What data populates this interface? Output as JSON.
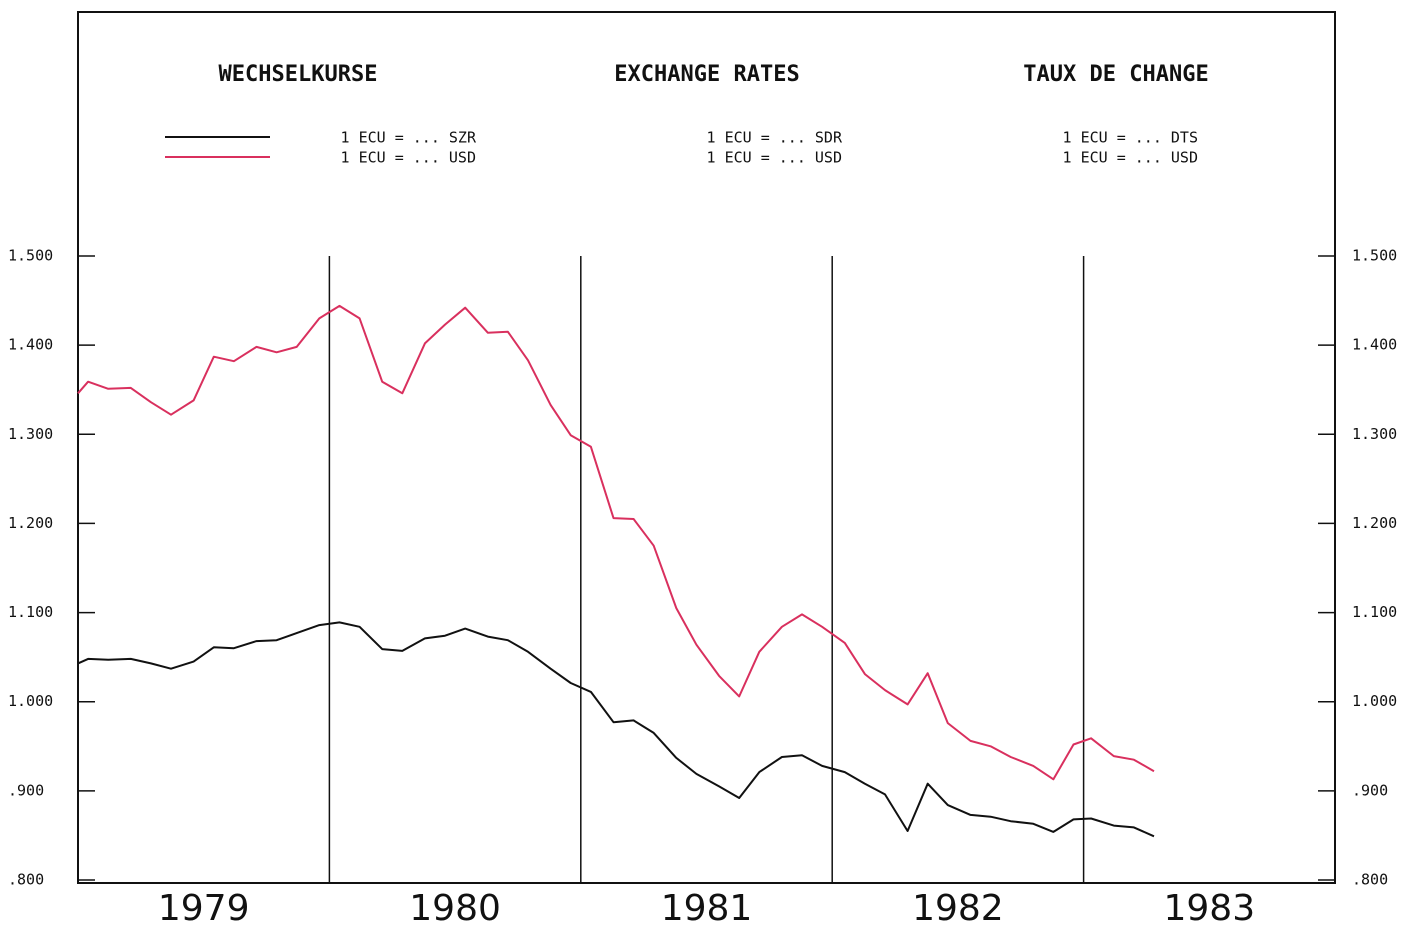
{
  "chart_data": {
    "type": "line",
    "titles": [
      "WECHSELKURSE",
      "EXCHANGE RATES",
      "TAUX DE CHANGE"
    ],
    "legend_columns": [
      [
        "1 ECU = ... SZR",
        "1 ECU = ... USD"
      ],
      [
        "1 ECU = ... SDR",
        "1 ECU = ... USD"
      ],
      [
        "1 ECU = ... DTS",
        "1 ECU = ... USD"
      ]
    ],
    "x": [
      1979.0,
      1979.04,
      1979.12,
      1979.21,
      1979.29,
      1979.37,
      1979.46,
      1979.54,
      1979.62,
      1979.71,
      1979.79,
      1979.87,
      1979.96,
      1980.04,
      1980.12,
      1980.21,
      1980.29,
      1980.38,
      1980.46,
      1980.54,
      1980.63,
      1980.71,
      1980.79,
      1980.88,
      1980.96,
      1981.04,
      1981.13,
      1981.21,
      1981.29,
      1981.38,
      1981.46,
      1981.55,
      1981.63,
      1981.71,
      1981.8,
      1981.88,
      1981.96,
      1982.05,
      1982.13,
      1982.21,
      1982.3,
      1982.38,
      1982.46,
      1982.55,
      1982.63,
      1982.71,
      1982.8,
      1982.88,
      1982.96,
      1983.03,
      1983.12,
      1983.2,
      1983.28
    ],
    "series": [
      {
        "name": "1 ECU = ... SZR",
        "color": "#111111",
        "values": [
          1.043,
          1.048,
          1.047,
          1.048,
          1.043,
          1.037,
          1.045,
          1.061,
          1.06,
          1.068,
          1.069,
          1.077,
          1.086,
          1.089,
          1.084,
          1.059,
          1.057,
          1.071,
          1.074,
          1.082,
          1.073,
          1.069,
          1.056,
          1.037,
          1.021,
          1.011,
          0.977,
          0.979,
          0.965,
          0.937,
          0.919,
          0.905,
          0.892,
          0.921,
          0.938,
          0.94,
          0.928,
          0.921,
          0.908,
          0.896,
          0.855,
          0.908,
          0.884,
          0.873,
          0.871,
          0.866,
          0.863,
          0.854,
          0.868,
          0.869,
          0.861,
          0.859,
          0.849
        ]
      },
      {
        "name": "1 ECU = ... USD",
        "color": "#d9305e",
        "values": [
          1.346,
          1.359,
          1.351,
          1.352,
          1.336,
          1.322,
          1.338,
          1.387,
          1.382,
          1.398,
          1.392,
          1.398,
          1.43,
          1.444,
          1.43,
          1.359,
          1.346,
          1.402,
          1.423,
          1.442,
          1.414,
          1.415,
          1.383,
          1.333,
          1.299,
          1.286,
          1.206,
          1.205,
          1.175,
          1.105,
          1.064,
          1.029,
          1.006,
          1.056,
          1.084,
          1.098,
          1.084,
          1.066,
          1.031,
          1.013,
          0.997,
          1.032,
          0.976,
          0.956,
          0.95,
          0.938,
          0.928,
          0.913,
          0.952,
          0.959,
          0.939,
          0.935,
          0.922
        ]
      }
    ],
    "xlim": [
      1979,
      1984
    ],
    "xticks": [
      {
        "value": 1979.5,
        "label": "1979"
      },
      {
        "value": 1980.5,
        "label": "1980"
      },
      {
        "value": 1981.5,
        "label": "1981"
      },
      {
        "value": 1982.5,
        "label": "1982"
      },
      {
        "value": 1983.5,
        "label": "1983"
      }
    ],
    "year_lines": [
      1980,
      1981,
      1982,
      1983
    ],
    "ylim": [
      0.8,
      1.5
    ],
    "yticks": [
      {
        "value": 1.5,
        "label": "1.500"
      },
      {
        "value": 1.4,
        "label": "1.400"
      },
      {
        "value": 1.3,
        "label": "1.300"
      },
      {
        "value": 1.2,
        "label": "1.200"
      },
      {
        "value": 1.1,
        "label": "1.100"
      },
      {
        "value": 1.0,
        "label": "1.000"
      },
      {
        "value": 0.9,
        "label": ".900"
      },
      {
        "value": 0.8,
        "label": ".800"
      }
    ]
  }
}
